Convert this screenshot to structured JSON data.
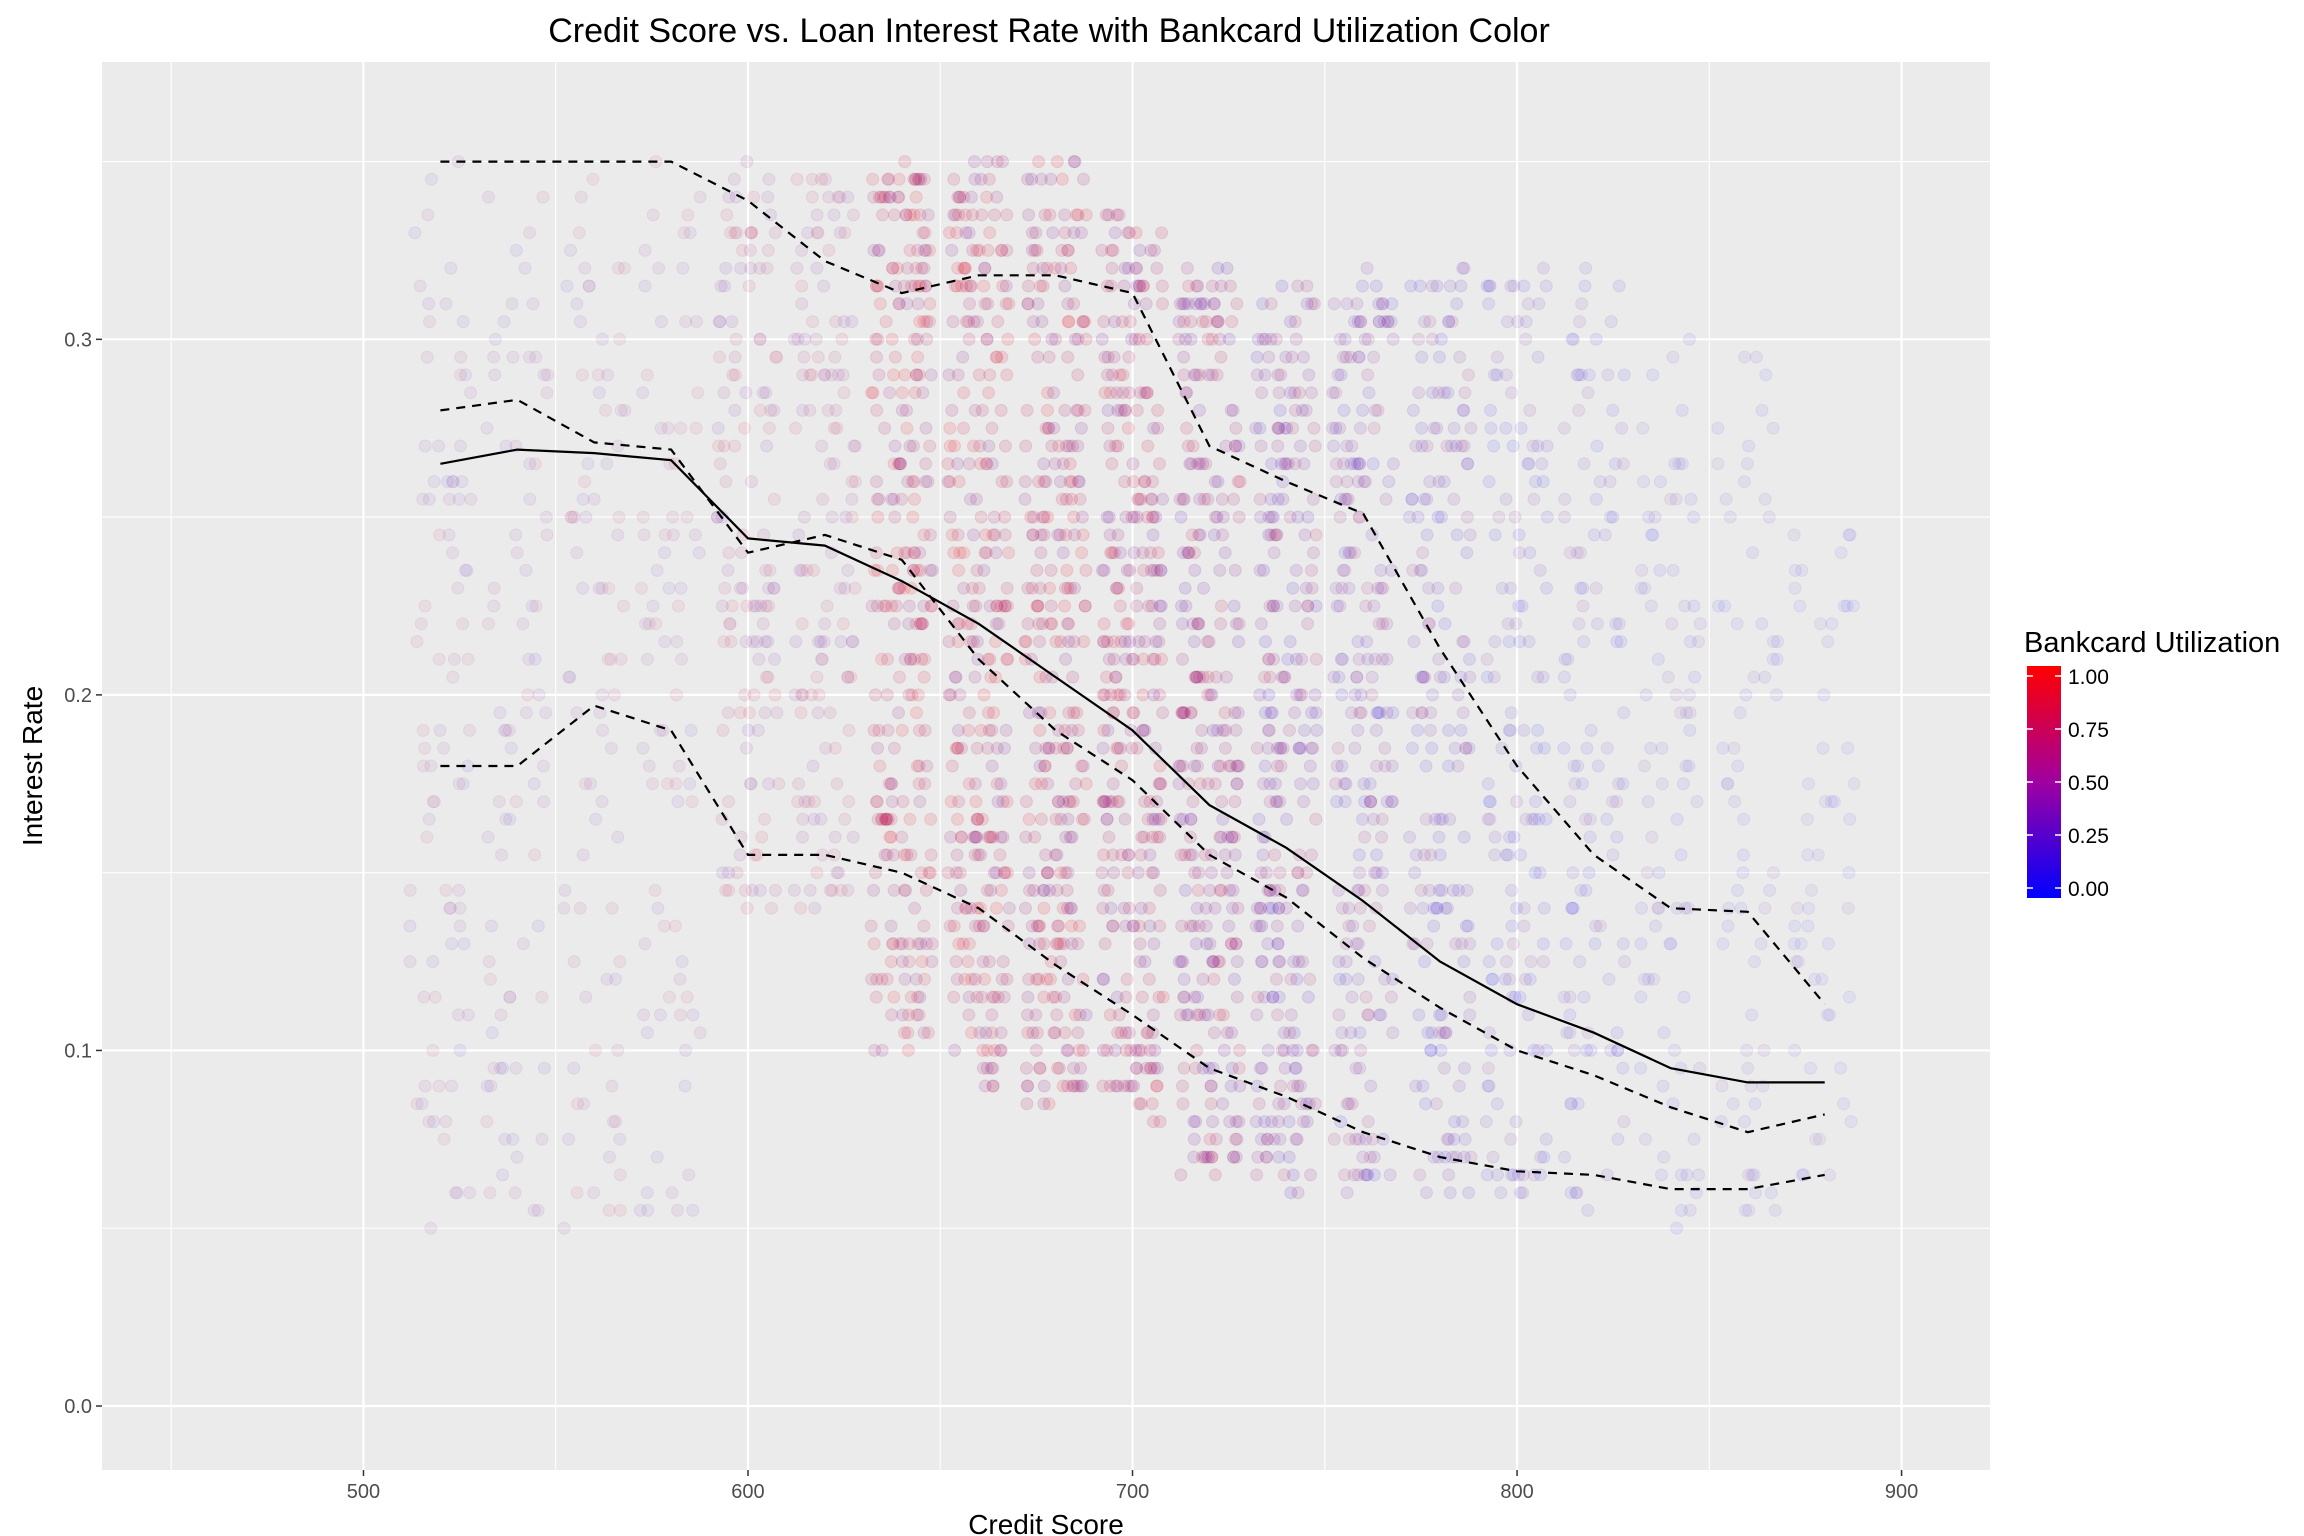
{
  "chart_data": {
    "type": "scatter",
    "title": "Credit Score vs. Loan Interest Rate with Bankcard Utilization Color",
    "xlabel": "Credit Score",
    "ylabel": "Interest Rate",
    "xlim": [
      432,
      923
    ],
    "ylim": [
      -0.018,
      0.378
    ],
    "x_ticks": [
      500,
      600,
      700,
      800,
      900
    ],
    "x_tick_labels": [
      "500",
      "600",
      "700",
      "800",
      "900"
    ],
    "y_ticks": [
      0.0,
      0.1,
      0.2,
      0.3
    ],
    "y_tick_labels": [
      "0.0",
      "0.1",
      "0.2",
      "0.3"
    ],
    "grid": true,
    "legend": {
      "title": "Bankcard Utilization",
      "position": "right",
      "low_color": "#0000ff",
      "high_color": "#ff0000",
      "ticks": [
        0.0,
        0.25,
        0.5,
        0.75,
        1.0
      ],
      "tick_labels": [
        "0.00",
        "0.25",
        "0.50",
        "0.75",
        "1.00"
      ]
    },
    "scatter_clusters": [
      {
        "x": 520,
        "y_min": 0.05,
        "y_max": 0.35,
        "density": 0.18,
        "utilization": 0.45
      },
      {
        "x": 540,
        "y_min": 0.05,
        "y_max": 0.35,
        "density": 0.16,
        "utilization": 0.45
      },
      {
        "x": 560,
        "y_min": 0.05,
        "y_max": 0.35,
        "density": 0.16,
        "utilization": 0.5
      },
      {
        "x": 580,
        "y_min": 0.05,
        "y_max": 0.35,
        "density": 0.16,
        "utilization": 0.5
      },
      {
        "x": 600,
        "y_min": 0.14,
        "y_max": 0.35,
        "density": 0.35,
        "utilization": 0.6
      },
      {
        "x": 620,
        "y_min": 0.14,
        "y_max": 0.35,
        "density": 0.35,
        "utilization": 0.6
      },
      {
        "x": 640,
        "y_min": 0.1,
        "y_max": 0.35,
        "density": 0.9,
        "utilization": 0.72
      },
      {
        "x": 660,
        "y_min": 0.09,
        "y_max": 0.35,
        "density": 0.95,
        "utilization": 0.7
      },
      {
        "x": 680,
        "y_min": 0.085,
        "y_max": 0.35,
        "density": 1.0,
        "utilization": 0.68
      },
      {
        "x": 700,
        "y_min": 0.08,
        "y_max": 0.34,
        "density": 1.0,
        "utilization": 0.62
      },
      {
        "x": 720,
        "y_min": 0.065,
        "y_max": 0.32,
        "density": 0.95,
        "utilization": 0.55
      },
      {
        "x": 740,
        "y_min": 0.06,
        "y_max": 0.32,
        "density": 0.85,
        "utilization": 0.45
      },
      {
        "x": 760,
        "y_min": 0.06,
        "y_max": 0.32,
        "density": 0.7,
        "utilization": 0.38
      },
      {
        "x": 780,
        "y_min": 0.06,
        "y_max": 0.32,
        "density": 0.55,
        "utilization": 0.3
      },
      {
        "x": 800,
        "y_min": 0.06,
        "y_max": 0.32,
        "density": 0.4,
        "utilization": 0.22
      },
      {
        "x": 820,
        "y_min": 0.05,
        "y_max": 0.32,
        "density": 0.28,
        "utilization": 0.18
      },
      {
        "x": 840,
        "y_min": 0.05,
        "y_max": 0.3,
        "density": 0.18,
        "utilization": 0.15
      },
      {
        "x": 860,
        "y_min": 0.05,
        "y_max": 0.3,
        "density": 0.1,
        "utilization": 0.12
      },
      {
        "x": 880,
        "y_min": 0.06,
        "y_max": 0.25,
        "density": 0.05,
        "utilization": 0.1
      }
    ],
    "series": [
      {
        "style": "solid",
        "x": [
          520,
          540,
          560,
          580,
          600,
          620,
          640,
          660,
          680,
          700,
          720,
          740,
          760,
          780,
          800,
          820,
          840,
          860,
          880
        ],
        "y": [
          0.265,
          0.269,
          0.268,
          0.266,
          0.244,
          0.242,
          0.232,
          0.22,
          0.205,
          0.19,
          0.169,
          0.157,
          0.142,
          0.125,
          0.113,
          0.105,
          0.095,
          0.091,
          0.091
        ]
      },
      {
        "style": "dashed",
        "x": [
          520,
          540,
          560,
          580,
          600,
          620,
          640,
          660,
          680,
          700,
          720,
          740,
          760,
          780,
          800,
          820,
          840,
          860,
          880
        ],
        "y": [
          0.35,
          0.35,
          0.35,
          0.35,
          0.339,
          0.322,
          0.313,
          0.318,
          0.318,
          0.313,
          0.27,
          0.26,
          0.251,
          0.213,
          0.18,
          0.155,
          0.14,
          0.139,
          0.113
        ]
      },
      {
        "style": "dashed",
        "x": [
          520,
          540,
          560,
          580,
          600,
          620,
          640,
          660,
          680,
          700,
          720,
          740,
          760,
          780,
          800,
          820,
          840,
          860,
          880
        ],
        "y": [
          0.28,
          0.283,
          0.271,
          0.269,
          0.24,
          0.245,
          0.238,
          0.21,
          0.19,
          0.176,
          0.155,
          0.143,
          0.126,
          0.112,
          0.1,
          0.093,
          0.084,
          0.077,
          0.082
        ]
      },
      {
        "style": "dashed",
        "x": [
          520,
          540,
          560,
          580,
          600,
          620,
          640,
          660,
          680,
          700,
          720,
          740,
          760,
          780,
          800,
          820,
          840,
          860,
          880
        ],
        "y": [
          0.18,
          0.18,
          0.197,
          0.19,
          0.155,
          0.155,
          0.15,
          0.14,
          0.124,
          0.11,
          0.095,
          0.087,
          0.077,
          0.07,
          0.066,
          0.065,
          0.061,
          0.061,
          0.065
        ]
      }
    ]
  }
}
